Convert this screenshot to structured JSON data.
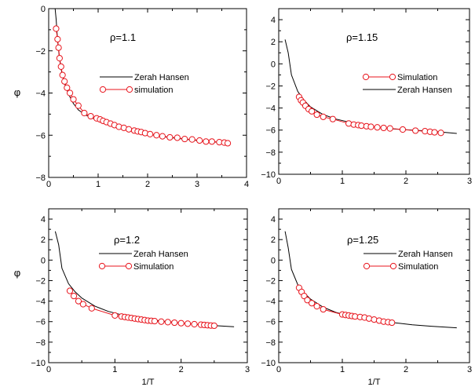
{
  "figure": {
    "x_axis_label": "1/T",
    "y_axis_label": "φ"
  },
  "chart_data": [
    {
      "type": "line",
      "panel": "top-left",
      "annotation": "ρ=1.1",
      "xlim": [
        0,
        4
      ],
      "ylim": [
        -8,
        0
      ],
      "xticks": [
        0,
        1,
        2,
        3,
        4
      ],
      "yticks": [
        0,
        -2,
        -4,
        -6,
        -8
      ],
      "xtick_labels": [
        "0",
        "1",
        "2",
        "3",
        "4"
      ],
      "ytick_labels": [
        "0",
        "−2",
        "−4",
        "−6",
        "−8"
      ],
      "xlabel": "",
      "ylabel": "φ",
      "legend_order": [
        "Zerah Hansen",
        "simulation"
      ],
      "legend_position": "center-right",
      "series": [
        {
          "name": "Zerah Hansen",
          "style": "line",
          "color": "#000000",
          "x": [
            0.13,
            0.15,
            0.18,
            0.22,
            0.27,
            0.33,
            0.4,
            0.5,
            0.6,
            0.75,
            0.9,
            1.1,
            1.3,
            1.6,
            2.0,
            2.4,
            2.8,
            3.2,
            3.6
          ],
          "y": [
            0.0,
            -0.5,
            -1.5,
            -2.4,
            -3.1,
            -3.6,
            -4.05,
            -4.5,
            -4.8,
            -5.05,
            -5.2,
            -5.4,
            -5.55,
            -5.75,
            -5.95,
            -6.1,
            -6.2,
            -6.3,
            -6.35
          ]
        },
        {
          "name": "simulation",
          "style": "line-marker",
          "color": "#e8141c",
          "x": [
            0.15,
            0.18,
            0.2,
            0.22,
            0.25,
            0.28,
            0.32,
            0.37,
            0.43,
            0.5,
            0.6,
            0.72,
            0.85,
            0.97,
            1.04,
            1.1,
            1.17,
            1.25,
            1.33,
            1.42,
            1.52,
            1.62,
            1.73,
            1.8,
            1.87,
            1.95,
            2.05,
            2.18,
            2.3,
            2.45,
            2.6,
            2.75,
            2.9,
            3.05,
            3.18,
            3.3,
            3.45,
            3.55,
            3.62
          ],
          "y": [
            -0.95,
            -1.45,
            -1.85,
            -2.35,
            -2.75,
            -3.15,
            -3.45,
            -3.75,
            -4.0,
            -4.3,
            -4.6,
            -4.95,
            -5.1,
            -5.2,
            -5.25,
            -5.32,
            -5.38,
            -5.45,
            -5.52,
            -5.6,
            -5.65,
            -5.72,
            -5.78,
            -5.82,
            -5.85,
            -5.9,
            -5.95,
            -6.0,
            -6.05,
            -6.1,
            -6.12,
            -6.18,
            -6.2,
            -6.25,
            -6.3,
            -6.3,
            -6.33,
            -6.35,
            -6.38
          ]
        }
      ]
    },
    {
      "type": "line",
      "panel": "top-right",
      "annotation": "ρ=1.15",
      "xlim": [
        0,
        3
      ],
      "ylim": [
        -10,
        5
      ],
      "xticks": [
        0,
        1,
        2,
        3
      ],
      "yticks": [
        4,
        2,
        0,
        -2,
        -4,
        -6,
        -8,
        -10
      ],
      "xtick_labels": [
        "0",
        "1",
        "2",
        "3"
      ],
      "ytick_labels": [
        "4",
        "2",
        "0",
        "−2",
        "−4",
        "−6",
        "−8",
        "−10"
      ],
      "xlabel": "",
      "ylabel": "",
      "legend_order": [
        "Simulation",
        "Zerah Hansen"
      ],
      "legend_position": "center-right",
      "series": [
        {
          "name": "Zerah Hansen",
          "style": "line",
          "color": "#000000",
          "x": [
            0.1,
            0.15,
            0.2,
            0.3,
            0.4,
            0.5,
            0.7,
            0.9,
            1.2,
            1.5,
            1.8,
            2.1,
            2.4,
            2.8
          ],
          "y": [
            2.2,
            1.0,
            -1.0,
            -2.5,
            -3.3,
            -3.9,
            -4.6,
            -5.0,
            -5.4,
            -5.7,
            -5.9,
            -6.0,
            -6.1,
            -6.3
          ]
        },
        {
          "name": "Simulation",
          "style": "line-marker",
          "color": "#e8141c",
          "x": [
            0.32,
            0.35,
            0.38,
            0.42,
            0.47,
            0.52,
            0.6,
            0.7,
            0.85,
            1.1,
            1.18,
            1.25,
            1.3,
            1.38,
            1.45,
            1.55,
            1.65,
            1.75,
            1.95,
            2.15,
            2.3,
            2.38,
            2.45,
            2.55
          ],
          "y": [
            -3.0,
            -3.3,
            -3.5,
            -3.8,
            -4.1,
            -4.3,
            -4.6,
            -4.8,
            -5.0,
            -5.4,
            -5.5,
            -5.55,
            -5.6,
            -5.65,
            -5.7,
            -5.75,
            -5.8,
            -5.85,
            -5.95,
            -6.05,
            -6.1,
            -6.15,
            -6.2,
            -6.25
          ]
        }
      ]
    },
    {
      "type": "line",
      "panel": "bottom-left",
      "annotation": "ρ=1.2",
      "xlim": [
        0,
        3
      ],
      "ylim": [
        -10,
        5
      ],
      "xticks": [
        0,
        1,
        2,
        3
      ],
      "yticks": [
        4,
        2,
        0,
        -2,
        -4,
        -6,
        -8,
        -10
      ],
      "xtick_labels": [
        "0",
        "1",
        "2",
        "3"
      ],
      "ytick_labels": [
        "4",
        "2",
        "0",
        "−2",
        "−4",
        "−6",
        "−8",
        "−10"
      ],
      "xlabel": "1/T",
      "ylabel": "φ",
      "legend_order": [
        "Zerah Hansen",
        "Simulation"
      ],
      "legend_position": "center-right",
      "series": [
        {
          "name": "Zerah Hansen",
          "style": "line",
          "color": "#000000",
          "x": [
            0.1,
            0.15,
            0.2,
            0.3,
            0.4,
            0.5,
            0.7,
            0.9,
            1.2,
            1.5,
            1.8,
            2.1,
            2.4,
            2.8
          ],
          "y": [
            2.8,
            1.5,
            -0.8,
            -2.3,
            -3.1,
            -3.7,
            -4.5,
            -5.0,
            -5.5,
            -5.8,
            -6.0,
            -6.2,
            -6.35,
            -6.5
          ]
        },
        {
          "name": "Simulation",
          "style": "line-marker",
          "color": "#e8141c",
          "x": [
            0.32,
            0.38,
            0.45,
            0.52,
            0.65,
            1.0,
            1.1,
            1.15,
            1.2,
            1.25,
            1.3,
            1.35,
            1.4,
            1.45,
            1.5,
            1.55,
            1.6,
            1.7,
            1.8,
            1.9,
            2.0,
            2.1,
            2.2,
            2.3,
            2.35,
            2.4,
            2.45,
            2.5
          ],
          "y": [
            -3.0,
            -3.5,
            -4.0,
            -4.3,
            -4.7,
            -5.4,
            -5.5,
            -5.55,
            -5.6,
            -5.65,
            -5.7,
            -5.75,
            -5.8,
            -5.85,
            -5.9,
            -5.92,
            -5.95,
            -6.0,
            -6.05,
            -6.1,
            -6.15,
            -6.2,
            -6.25,
            -6.3,
            -6.32,
            -6.35,
            -6.38,
            -6.4
          ]
        }
      ]
    },
    {
      "type": "line",
      "panel": "bottom-right",
      "annotation": "ρ=1.25",
      "xlim": [
        0,
        3
      ],
      "ylim": [
        -10,
        5
      ],
      "xticks": [
        0,
        1,
        2,
        3
      ],
      "yticks": [
        4,
        2,
        0,
        -2,
        -4,
        -6,
        -8,
        -10
      ],
      "xtick_labels": [
        "0",
        "1",
        "2",
        "3"
      ],
      "ytick_labels": [
        "4",
        "2",
        "0",
        "−2",
        "−4",
        "−6",
        "−8",
        "−10"
      ],
      "xlabel": "1/T",
      "ylabel": "",
      "legend_order": [
        "Zerah Hansen",
        "Simulation"
      ],
      "legend_position": "center-right",
      "series": [
        {
          "name": "Zerah Hansen",
          "style": "line",
          "color": "#000000",
          "x": [
            0.1,
            0.15,
            0.2,
            0.3,
            0.4,
            0.5,
            0.7,
            0.9,
            1.2,
            1.5,
            1.8,
            2.1,
            2.4,
            2.8
          ],
          "y": [
            2.8,
            1.2,
            -0.9,
            -2.4,
            -3.2,
            -3.8,
            -4.6,
            -5.1,
            -5.6,
            -5.9,
            -6.1,
            -6.3,
            -6.45,
            -6.6
          ]
        },
        {
          "name": "Simulation",
          "style": "line-marker",
          "color": "#e8141c",
          "x": [
            0.32,
            0.36,
            0.4,
            0.45,
            0.52,
            0.6,
            0.7,
            1.0,
            1.05,
            1.1,
            1.15,
            1.2,
            1.28,
            1.35,
            1.42,
            1.5,
            1.58,
            1.65,
            1.72,
            1.78
          ],
          "y": [
            -2.7,
            -3.1,
            -3.5,
            -3.9,
            -4.2,
            -4.5,
            -4.8,
            -5.3,
            -5.35,
            -5.4,
            -5.45,
            -5.5,
            -5.55,
            -5.6,
            -5.7,
            -5.8,
            -5.9,
            -6.0,
            -6.05,
            -6.1
          ]
        }
      ]
    }
  ]
}
